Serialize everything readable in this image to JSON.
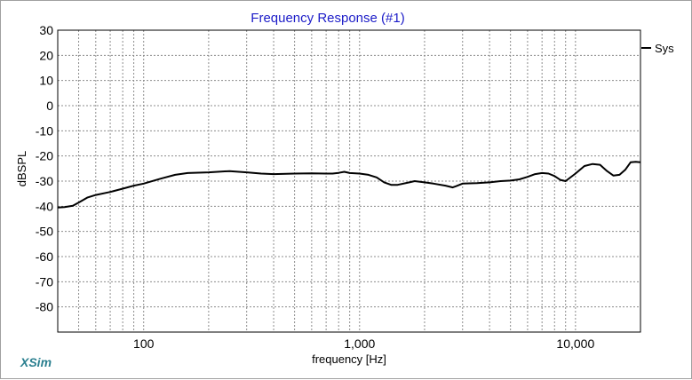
{
  "app": {
    "brand": "XSim"
  },
  "chart_data": {
    "type": "line",
    "title": "Frequency Response (#1)",
    "xlabel": "frequency [Hz]",
    "ylabel": "dBSPL",
    "xscale": "log",
    "xlim": [
      40,
      20000
    ],
    "ylim": [
      -90,
      30
    ],
    "grid": true,
    "legend_placement": "top-right",
    "y_ticks": [
      30,
      20,
      10,
      0,
      -10,
      -20,
      -30,
      -40,
      -50,
      -60,
      -70,
      -80
    ],
    "y_tick_labels": [
      "30",
      "20",
      "10",
      "0",
      "-10",
      "-20",
      "-30",
      "-40",
      "-50",
      "-60",
      "-70",
      "-80"
    ],
    "x_ticks": [
      100,
      1000,
      10000
    ],
    "x_tick_labels": [
      "100",
      "1,000",
      "10,000"
    ],
    "x_minor_grid": [
      50,
      60,
      70,
      80,
      90,
      200,
      300,
      400,
      500,
      600,
      700,
      800,
      900,
      2000,
      3000,
      4000,
      5000,
      6000,
      7000,
      8000,
      9000
    ],
    "series": [
      {
        "name": "Sys",
        "color": "#000000",
        "x": [
          40,
          43,
          47,
          50,
          55,
          60,
          70,
          80,
          90,
          100,
          120,
          140,
          160,
          200,
          250,
          300,
          350,
          400,
          500,
          600,
          700,
          750,
          800,
          850,
          900,
          1000,
          1100,
          1200,
          1300,
          1400,
          1500,
          1700,
          1800,
          2000,
          2200,
          2500,
          2700,
          2800,
          3000,
          3500,
          4000,
          4500,
          5000,
          5500,
          6000,
          6500,
          7000,
          7500,
          8000,
          8500,
          9000,
          10000,
          11000,
          12000,
          13000,
          14000,
          15000,
          16000,
          17000,
          18000,
          19000,
          20000
        ],
        "values": [
          -40.5,
          -40.3,
          -39.8,
          -38.5,
          -36.5,
          -35.5,
          -34.3,
          -33.0,
          -31.8,
          -31.0,
          -29.0,
          -27.5,
          -26.8,
          -26.5,
          -26.0,
          -26.5,
          -27.0,
          -27.2,
          -27.0,
          -26.9,
          -27.0,
          -27.0,
          -26.7,
          -26.3,
          -26.8,
          -27.0,
          -27.5,
          -28.5,
          -30.5,
          -31.5,
          -31.5,
          -30.5,
          -30.0,
          -30.5,
          -31.0,
          -31.8,
          -32.5,
          -32.0,
          -31.0,
          -30.8,
          -30.5,
          -30.0,
          -29.8,
          -29.3,
          -28.3,
          -27.2,
          -26.8,
          -27.0,
          -28.0,
          -29.5,
          -30.0,
          -27.0,
          -24.0,
          -23.2,
          -23.5,
          -26.0,
          -27.8,
          -27.5,
          -25.5,
          -22.5,
          -22.3,
          -22.5
        ]
      }
    ]
  }
}
